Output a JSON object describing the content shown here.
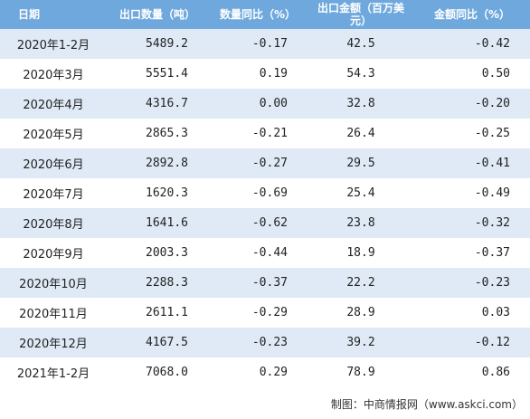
{
  "table": {
    "header": [
      "日期",
      "出口数量（吨）",
      "数量同比（%）",
      "出口金额（百万美元）",
      "金额同比（%）"
    ],
    "rows": [
      [
        "2020年1-2月",
        "5489.2",
        "-0.17",
        "42.5",
        "-0.42"
      ],
      [
        "2020年3月",
        "5551.4",
        "0.19",
        "54.3",
        "0.50"
      ],
      [
        "2020年4月",
        "4316.7",
        "0.00",
        "32.8",
        "-0.20"
      ],
      [
        "2020年5月",
        "2865.3",
        "-0.21",
        "26.4",
        "-0.25"
      ],
      [
        "2020年6月",
        "2892.8",
        "-0.27",
        "29.5",
        "-0.41"
      ],
      [
        "2020年7月",
        "1620.3",
        "-0.69",
        "25.4",
        "-0.49"
      ],
      [
        "2020年8月",
        "1641.6",
        "-0.62",
        "23.8",
        "-0.32"
      ],
      [
        "2020年9月",
        "2003.3",
        "-0.44",
        "18.9",
        "-0.37"
      ],
      [
        "2020年10月",
        "2288.3",
        "-0.37",
        "22.2",
        "-0.23"
      ],
      [
        "2020年11月",
        "2611.1",
        "-0.29",
        "28.9",
        "0.03"
      ],
      [
        "2020年12月",
        "4167.5",
        "-0.23",
        "39.2",
        "-0.12"
      ],
      [
        "2021年1-2月",
        "7068.0",
        "0.29",
        "78.9",
        "0.86"
      ]
    ]
  },
  "footer": "制图：中商情报网（www.askci.com）"
}
